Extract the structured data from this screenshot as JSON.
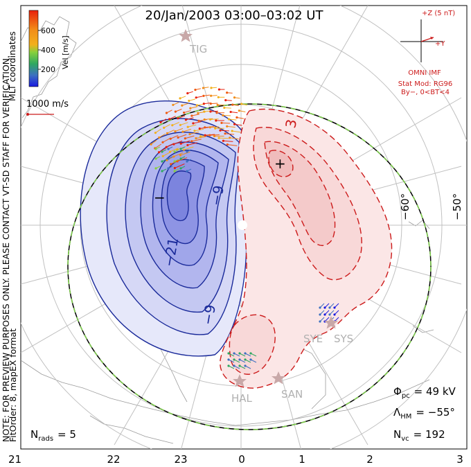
{
  "title": "20/Jan/2003 03:00–03:02 UT",
  "colorbar": {
    "tick_labels": [
      "600",
      "400",
      "200"
    ],
    "unit_label": "Vel [m/s]",
    "colors": [
      "#e8200c",
      "#f05a10",
      "#f28c18",
      "#f2b01c",
      "#86d03c",
      "#2fa860",
      "#3c70c0",
      "#1a1ae0"
    ]
  },
  "side_note": {
    "coords": "MLT coordinates",
    "preview": "NOTE: FOR PREVIEW PURPOSES ONLY. PLEASE CONTACT VT-SD STAFF FOR VERIFICATION.",
    "fit": "FitOrder: 8, mapEX format"
  },
  "vector_scale": {
    "label": "1000 m/s"
  },
  "imf": {
    "z_label": "+Z (5 nT)",
    "y_label": "+Y",
    "source": "OMNI IMF",
    "model": "Stat Mod: RG96",
    "condition": "By−, 0<BT<4"
  },
  "stations": [
    "TIG",
    "SYE",
    "SYS",
    "HAL",
    "SAN"
  ],
  "contour_labels": {
    "negative": [
      "−9",
      "−21",
      "−9"
    ],
    "positive": [
      "3"
    ]
  },
  "potential_markers": {
    "min": "−",
    "max": "+"
  },
  "latitude_labels": [
    "−60°",
    "−50°"
  ],
  "stats": {
    "phi_pc_symbol": "Φ",
    "phi_pc_sub": "pc",
    "phi_pc_value": "= 49 kV",
    "lambda_hm_symbol": "Λ",
    "lambda_hm_sub": "HM",
    "lambda_hm_value": "= −55°",
    "n_vc_symbol": "N",
    "n_vc_sub": "vc",
    "n_vc_value": "= 192",
    "n_rads_symbol": "N",
    "n_rads_sub": "rads",
    "n_rads_value": "= 5"
  },
  "mlt_axis": [
    "21",
    "22",
    "23",
    "0",
    "1",
    "2",
    "3"
  ]
}
